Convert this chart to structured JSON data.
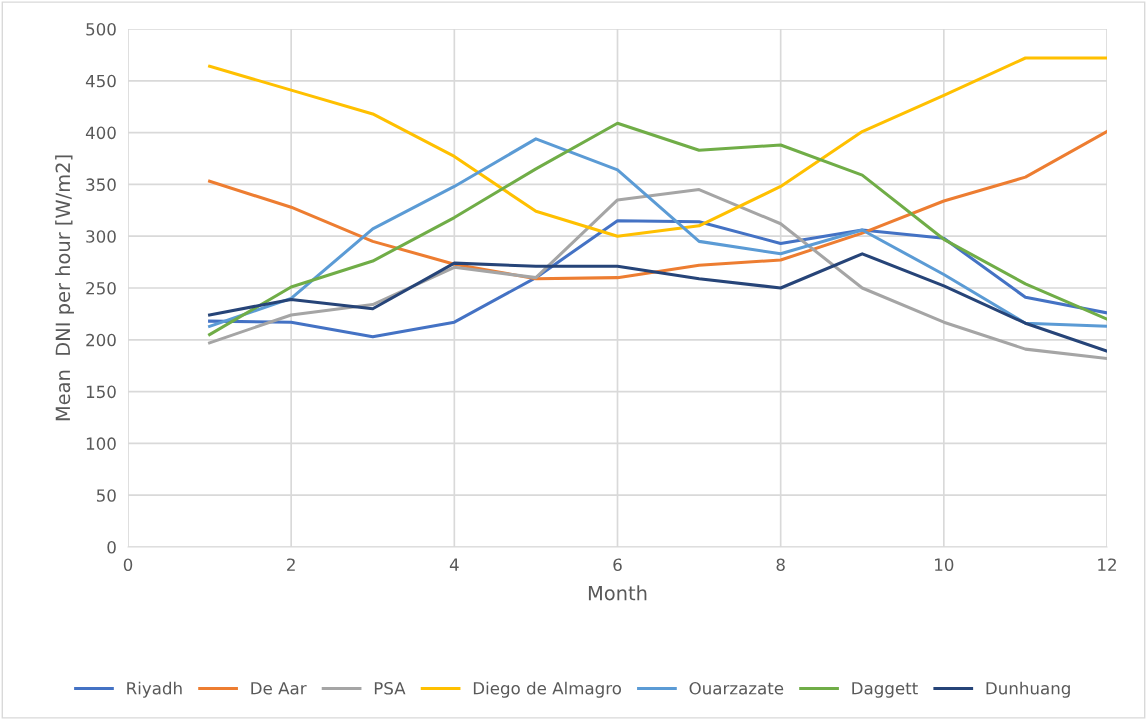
{
  "chart_data": {
    "type": "line",
    "xlabel": "Month",
    "ylabel": "Mean  DNI per hour [W/m2]",
    "x": [
      1,
      2,
      3,
      4,
      5,
      6,
      7,
      8,
      9,
      10,
      11,
      12
    ],
    "series": [
      {
        "name": "Riyadh",
        "color": "#4472c4",
        "values": [
          218,
          217,
          203,
          217,
          260,
          315,
          314,
          293,
          306,
          298,
          241,
          226
        ]
      },
      {
        "name": "De Aar",
        "color": "#ed7d31",
        "values": [
          353,
          328,
          295,
          273,
          259,
          260,
          272,
          277,
          303,
          334,
          357,
          401
        ]
      },
      {
        "name": "PSA",
        "color": "#a5a5a5",
        "values": [
          197,
          224,
          234,
          270,
          260,
          335,
          345,
          312,
          250,
          217,
          191,
          182
        ]
      },
      {
        "name": "Diego de Almagro",
        "color": "#ffc000",
        "values": [
          464,
          441,
          418,
          377,
          324,
          300,
          310,
          348,
          401,
          436,
          472,
          472
        ]
      },
      {
        "name": "Ouarzazate",
        "color": "#5b9bd5",
        "values": [
          213,
          240,
          307,
          348,
          394,
          364,
          295,
          283,
          306,
          263,
          216,
          213
        ]
      },
      {
        "name": "Daggett",
        "color": "#70ad47",
        "values": [
          205,
          251,
          276,
          318,
          365,
          409,
          383,
          388,
          359,
          297,
          254,
          220
        ]
      },
      {
        "name": "Dunhuang",
        "color": "#264478",
        "values": [
          224,
          239,
          230,
          274,
          271,
          271,
          259,
          250,
          283,
          252,
          216,
          189
        ]
      }
    ],
    "xlim": [
      0,
      12
    ],
    "xticks": [
      0,
      2,
      4,
      6,
      8,
      10,
      12
    ],
    "ylim": [
      0,
      500
    ],
    "yticks": [
      0,
      50,
      100,
      150,
      200,
      250,
      300,
      350,
      400,
      450,
      500
    ],
    "grid": true,
    "legend": "bottom",
    "marker": "none",
    "line_style": "solid"
  }
}
